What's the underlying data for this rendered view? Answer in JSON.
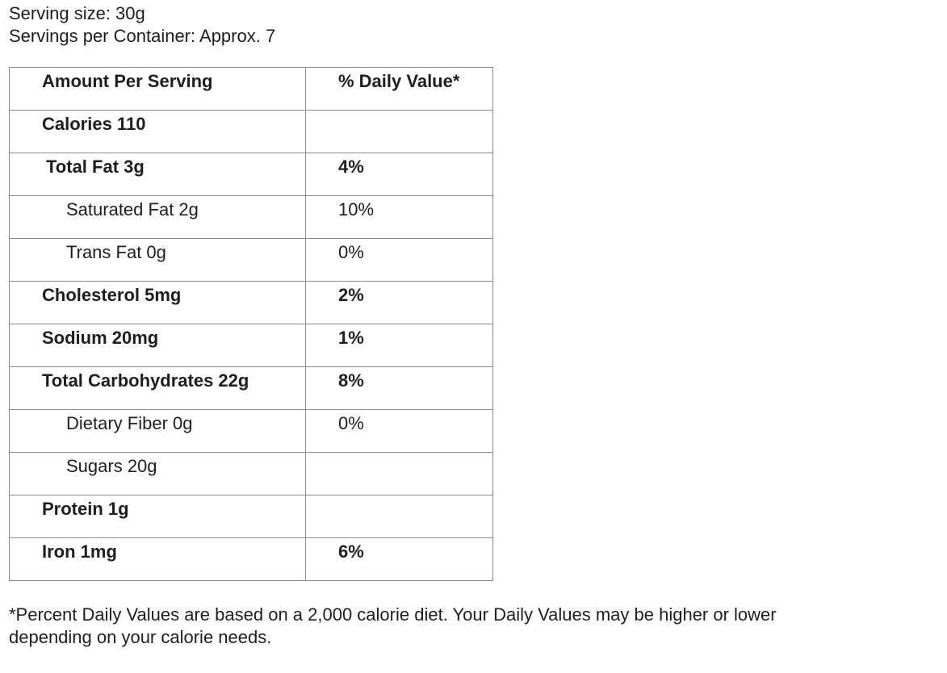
{
  "serving_size": "Serving size:  30g",
  "servings_per_container": "Servings per Container: Approx. 7",
  "table": {
    "header": {
      "left": "Amount Per Serving",
      "right": "% Daily Value*"
    },
    "rows": [
      {
        "label": "Calories 110",
        "dv": "",
        "bold": true,
        "indent": "none"
      },
      {
        "label": "Total Fat 3g",
        "dv": "4%",
        "bold": true,
        "indent": "slight"
      },
      {
        "label": "Saturated Fat 2g",
        "dv": "10%",
        "bold": false,
        "indent": "sub"
      },
      {
        "label": "Trans Fat 0g",
        "dv": "0%",
        "bold": false,
        "indent": "sub"
      },
      {
        "label": "Cholesterol 5mg",
        "dv": "2%",
        "bold": true,
        "indent": "none"
      },
      {
        "label": "Sodium 20mg",
        "dv": "1%",
        "bold": true,
        "indent": "none"
      },
      {
        "label": "Total Carbohydrates 22g",
        "dv": "8%",
        "bold": true,
        "indent": "none"
      },
      {
        "label": "Dietary Fiber 0g",
        "dv": "0%",
        "bold": false,
        "indent": "sub"
      },
      {
        "label": "Sugars 20g",
        "dv": "",
        "bold": false,
        "indent": "sub"
      },
      {
        "label": "Protein 1g",
        "dv": "",
        "bold": true,
        "indent": "none"
      },
      {
        "label": "Iron 1mg",
        "dv": "6%",
        "bold": true,
        "indent": "none"
      }
    ]
  },
  "footnote": {
    "line1": "*Percent Daily Values are based on a 2,000 calorie diet.  Your Daily Values may be higher or lower",
    "line2": "depending on your calorie needs."
  }
}
